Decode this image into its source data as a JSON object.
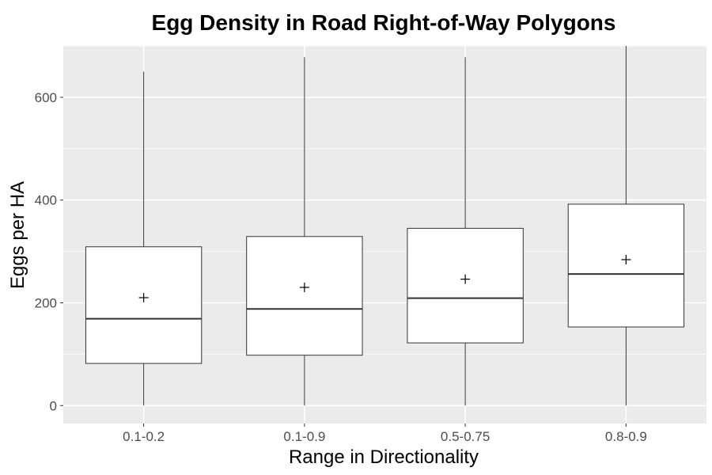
{
  "chart_data": {
    "type": "box",
    "title": "Egg Density in Road Right-of-Way Polygons",
    "xlabel": "Range in Directionality",
    "ylabel": "Eggs per HA",
    "categories": [
      "0.1-0.2",
      "0.1-0.9",
      "0.5-0.75",
      "0.8-0.9"
    ],
    "boxes": [
      {
        "category": "0.1-0.2",
        "whisker_low": 0,
        "q1": 82,
        "median": 169,
        "q3": 309,
        "whisker_high": 650,
        "mean": 210
      },
      {
        "category": "0.1-0.9",
        "whisker_low": 0,
        "q1": 98,
        "median": 188,
        "q3": 329,
        "whisker_high": 678,
        "mean": 230
      },
      {
        "category": "0.5-0.75",
        "whisker_low": 0,
        "q1": 122,
        "median": 209,
        "q3": 345,
        "whisker_high": 678,
        "mean": 246
      },
      {
        "category": "0.8-0.9",
        "whisker_low": 0,
        "q1": 153,
        "median": 256,
        "q3": 392,
        "whisker_high": 700,
        "mean": 284
      }
    ],
    "yticks": [
      0,
      200,
      400,
      600
    ],
    "ylim": [
      -35,
      700
    ],
    "grid": true,
    "panel_background": "#ebebeb",
    "grid_color": "#ffffff",
    "box_fill": "#ffffff",
    "line_color": "#333333"
  }
}
